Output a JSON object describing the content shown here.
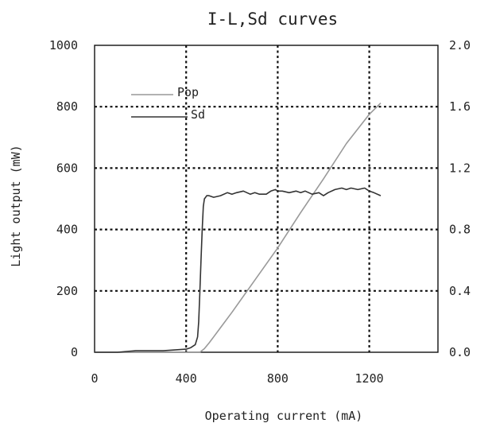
{
  "chart_data": {
    "type": "line",
    "title": "I-L,Sd curves",
    "xlabel": "Operating current (mA)",
    "ylabel": "Light output (mW)",
    "xlim": [
      0,
      1500
    ],
    "ylim": [
      0,
      1000
    ],
    "y2lim": [
      0,
      2.0
    ],
    "x_ticks": [
      "0",
      "400",
      "800",
      "1200"
    ],
    "y_ticks": [
      "0",
      "200",
      "400",
      "600",
      "800",
      "1000"
    ],
    "y2_ticks": [
      "0.0",
      "0.4",
      "0.8",
      "1.2",
      "1.6",
      "2.0"
    ],
    "grid": true,
    "legend_position": "top-left",
    "series": [
      {
        "name": "Pop",
        "axis": "left",
        "color": "#999999",
        "x": [
          0,
          100,
          200,
          300,
          400,
          440,
          460,
          480,
          500,
          520,
          550,
          600,
          700,
          800,
          900,
          1000,
          1100,
          1200,
          1250
        ],
        "y": [
          0,
          0,
          0,
          0,
          0,
          0,
          0,
          12,
          30,
          50,
          80,
          130,
          235,
          340,
          455,
          565,
          680,
          775,
          812
        ]
      },
      {
        "name": "Sd",
        "axis": "right",
        "color": "#333333",
        "x": [
          0,
          100,
          180,
          200,
          300,
          400,
          420,
          440,
          450,
          455,
          460,
          465,
          470,
          475,
          480,
          485,
          490,
          500,
          520,
          550,
          580,
          600,
          620,
          650,
          680,
          700,
          720,
          750,
          770,
          790,
          800,
          820,
          850,
          880,
          900,
          920,
          950,
          980,
          1000,
          1020,
          1050,
          1080,
          1100,
          1120,
          1150,
          1180,
          1200,
          1220,
          1250
        ],
        "y": [
          0,
          0,
          0.01,
          0.01,
          0.01,
          0.02,
          0.03,
          0.05,
          0.1,
          0.2,
          0.4,
          0.6,
          0.8,
          0.95,
          1.0,
          1.01,
          1.02,
          1.02,
          1.01,
          1.02,
          1.04,
          1.03,
          1.04,
          1.05,
          1.03,
          1.04,
          1.03,
          1.03,
          1.05,
          1.06,
          1.05,
          1.05,
          1.04,
          1.05,
          1.04,
          1.05,
          1.03,
          1.04,
          1.02,
          1.04,
          1.06,
          1.07,
          1.06,
          1.07,
          1.06,
          1.07,
          1.05,
          1.04,
          1.02
        ]
      }
    ]
  }
}
